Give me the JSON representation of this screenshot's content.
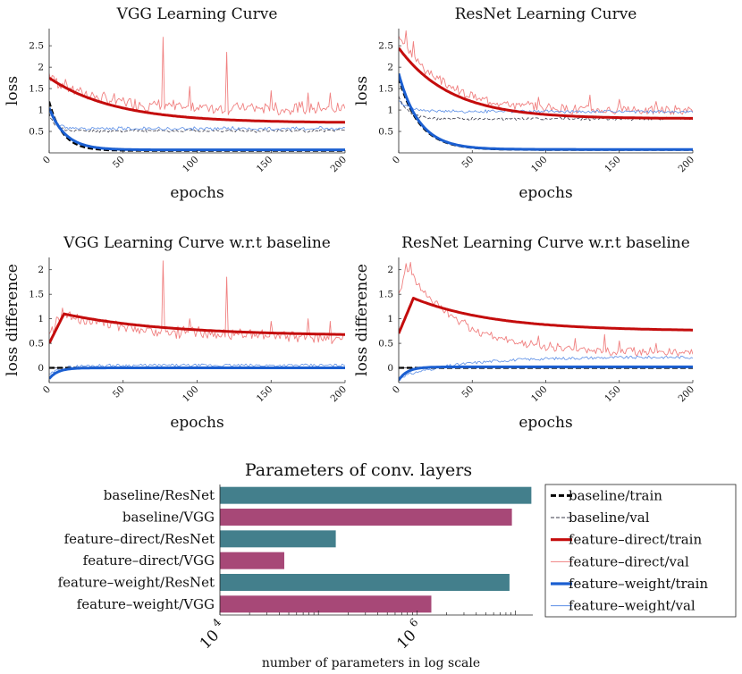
{
  "chart_data": [
    {
      "type": "line",
      "id": "vgg_curve",
      "title": "VGG Learning Curve",
      "xlabel": "epochs",
      "ylabel": "loss",
      "xlim": [
        0,
        200
      ],
      "ylim": [
        0,
        2.9
      ],
      "xticks": [
        0,
        50,
        100,
        150,
        200
      ],
      "yticks": [
        0.5,
        1,
        1.5,
        2,
        2.5
      ],
      "ytick_labels": [
        "0.5",
        "1",
        "1.5",
        "2",
        "2.5"
      ],
      "series": [
        {
          "name": "baseline/train",
          "color": "#000000",
          "width": 2.2,
          "dash": "6,3",
          "kind": "decay",
          "start": 1.2,
          "end": 0.05,
          "tau": 9
        },
        {
          "name": "baseline/val",
          "color": "#3a3a4a",
          "width": 0.8,
          "dash": "4,2",
          "kind": "noisy",
          "start": 0.9,
          "end": 0.5,
          "tau": 4,
          "noise": 0.03,
          "seed": 11
        },
        {
          "name": "feature-direct/train",
          "color": "#c40c0c",
          "width": 3,
          "dash": "",
          "kind": "decay",
          "start": 1.75,
          "end": 0.7,
          "tau": 45
        },
        {
          "name": "feature-direct/val",
          "color": "#f08080",
          "width": 0.9,
          "dash": "",
          "kind": "noisy",
          "start": 1.75,
          "end": 0.98,
          "tau": 30,
          "noise": 0.12,
          "seed": 7,
          "spikes": [
            [
              77,
              2.7
            ],
            [
              120,
              2.35
            ],
            [
              95,
              1.55
            ],
            [
              150,
              1.45
            ],
            [
              175,
              1.4
            ],
            [
              30,
              1.35
            ],
            [
              190,
              1.4
            ]
          ]
        },
        {
          "name": "feature-weight/train",
          "color": "#1b5fd1",
          "width": 3,
          "dash": "",
          "kind": "decay",
          "start": 1.05,
          "end": 0.07,
          "tau": 11
        },
        {
          "name": "feature-weight/val",
          "color": "#5b8ee6",
          "width": 0.8,
          "dash": "",
          "kind": "noisy",
          "start": 1.0,
          "end": 0.55,
          "tau": 4,
          "noise": 0.035,
          "seed": 23
        }
      ]
    },
    {
      "type": "line",
      "id": "resnet_curve",
      "title": "ResNet Learning Curve",
      "xlabel": "epochs",
      "ylabel": "loss",
      "xlim": [
        0,
        200
      ],
      "ylim": [
        0,
        2.9
      ],
      "xticks": [
        0,
        50,
        100,
        150,
        200
      ],
      "yticks": [
        0.5,
        1,
        1.5,
        2,
        2.5
      ],
      "ytick_labels": [
        "0.5",
        "1",
        "1.5",
        "2",
        "2.5"
      ],
      "series": [
        {
          "name": "baseline/train",
          "color": "#000000",
          "width": 2.2,
          "dash": "6,3",
          "kind": "decay",
          "start": 1.75,
          "end": 0.07,
          "tau": 14
        },
        {
          "name": "baseline/val",
          "color": "#3a3a4a",
          "width": 0.8,
          "dash": "4,2",
          "kind": "noisy",
          "start": 1.3,
          "end": 0.78,
          "tau": 6,
          "noise": 0.03,
          "seed": 5
        },
        {
          "name": "feature-direct/train",
          "color": "#c40c0c",
          "width": 3,
          "dash": "",
          "kind": "decay",
          "start": 2.45,
          "end": 0.8,
          "tau": 35
        },
        {
          "name": "feature-direct/val",
          "color": "#f08080",
          "width": 0.9,
          "dash": "",
          "kind": "noisy",
          "start": 2.7,
          "end": 0.95,
          "tau": 30,
          "noise": 0.09,
          "seed": 3,
          "spikes": [
            [
              5,
              2.85
            ],
            [
              10,
              2.6
            ],
            [
              95,
              1.3
            ],
            [
              130,
              1.35
            ],
            [
              150,
              1.25
            ],
            [
              175,
              1.2
            ]
          ]
        },
        {
          "name": "feature-weight/train",
          "color": "#1b5fd1",
          "width": 3,
          "dash": "",
          "kind": "decay",
          "start": 1.85,
          "end": 0.08,
          "tau": 14
        },
        {
          "name": "feature-weight/val",
          "color": "#5b8ee6",
          "width": 0.8,
          "dash": "",
          "kind": "noisy",
          "start": 1.2,
          "end": 0.95,
          "tau": 8,
          "noise": 0.03,
          "seed": 19
        }
      ]
    },
    {
      "type": "line",
      "id": "vgg_diff",
      "title": "VGG Learning Curve w.r.t baseline",
      "xlabel": "epochs",
      "ylabel": "loss difference",
      "xlim": [
        0,
        200
      ],
      "ylim": [
        -0.3,
        2.25
      ],
      "xticks": [
        0,
        50,
        100,
        150,
        200
      ],
      "yticks": [
        0,
        0.5,
        1,
        1.5,
        2
      ],
      "ytick_labels": [
        "0",
        "0.5",
        "1",
        "1.5",
        "2"
      ],
      "series": [
        {
          "name": "baseline/train",
          "color": "#000000",
          "width": 2.2,
          "dash": "6,3",
          "kind": "const",
          "value": 0
        },
        {
          "name": "baseline/val",
          "color": "#3a3a4a",
          "width": 0.8,
          "dash": "4,2",
          "kind": "const",
          "value": 0
        },
        {
          "name": "feature-direct/train",
          "color": "#c40c0c",
          "width": 3,
          "dash": "",
          "kind": "rise",
          "start": 0.5,
          "peak": 1.1,
          "peakx": 10,
          "end": 0.65,
          "tau": 70
        },
        {
          "name": "feature-direct/val",
          "color": "#f08080",
          "width": 0.9,
          "dash": "",
          "kind": "noisyrise",
          "start": 0.6,
          "peak": 1.05,
          "peakx": 8,
          "end": 0.55,
          "tau": 60,
          "noise": 0.1,
          "seed": 13,
          "spikes": [
            [
              77,
              2.18
            ],
            [
              120,
              1.85
            ],
            [
              95,
              1.0
            ],
            [
              150,
              0.95
            ],
            [
              175,
              1.0
            ],
            [
              190,
              0.95
            ]
          ]
        },
        {
          "name": "feature-weight/train",
          "color": "#1b5fd1",
          "width": 3,
          "dash": "",
          "kind": "recover",
          "start": -0.22,
          "end": 0.0,
          "tau": 6
        },
        {
          "name": "feature-weight/val",
          "color": "#5b8ee6",
          "width": 0.8,
          "dash": "",
          "kind": "noisyrecover",
          "start": -0.15,
          "end": 0.05,
          "tau": 8,
          "noise": 0.03,
          "seed": 29
        }
      ]
    },
    {
      "type": "line",
      "id": "resnet_diff",
      "title": "ResNet Learning Curve w.r.t baseline",
      "xlabel": "epochs",
      "ylabel": "loss difference",
      "xlim": [
        0,
        200
      ],
      "ylim": [
        -0.3,
        2.25
      ],
      "xticks": [
        0,
        50,
        100,
        150,
        200
      ],
      "yticks": [
        0,
        0.5,
        1,
        1.5,
        2
      ],
      "ytick_labels": [
        "0",
        "0.5",
        "1",
        "1.5",
        "2"
      ],
      "series": [
        {
          "name": "baseline/train",
          "color": "#000000",
          "width": 2.2,
          "dash": "6,3",
          "kind": "const",
          "value": 0
        },
        {
          "name": "baseline/val",
          "color": "#3a3a4a",
          "width": 0.8,
          "dash": "4,2",
          "kind": "const",
          "value": 0
        },
        {
          "name": "feature-direct/train",
          "color": "#c40c0c",
          "width": 3,
          "dash": "",
          "kind": "rise",
          "start": 0.7,
          "peak": 1.42,
          "peakx": 10,
          "end": 0.75,
          "tau": 55
        },
        {
          "name": "feature-direct/val",
          "color": "#f08080",
          "width": 0.9,
          "dash": "",
          "kind": "noisyrise",
          "start": 1.4,
          "peak": 2.05,
          "peakx": 5,
          "end": 0.28,
          "tau": 35,
          "noise": 0.07,
          "seed": 17,
          "spikes": [
            [
              8,
              2.15
            ],
            [
              95,
              0.65
            ],
            [
              120,
              0.6
            ],
            [
              140,
              0.68
            ],
            [
              150,
              0.55
            ],
            [
              175,
              0.5
            ]
          ]
        },
        {
          "name": "feature-weight/train",
          "color": "#1b5fd1",
          "width": 3,
          "dash": "",
          "kind": "recover",
          "start": -0.25,
          "end": 0.02,
          "tau": 6
        },
        {
          "name": "feature-weight/val",
          "color": "#5b8ee6",
          "width": 0.8,
          "dash": "",
          "kind": "noisyrecover",
          "start": -0.2,
          "end": 0.22,
          "tau": 40,
          "noise": 0.03,
          "seed": 31
        }
      ]
    },
    {
      "type": "bar",
      "id": "params",
      "orientation": "horizontal",
      "title": "Parameters of conv. layers",
      "xlabel": "number of parameters in log scale",
      "xscale": "log",
      "xlim": [
        10000,
        15000000
      ],
      "xtick_majors": [
        10000,
        1000000
      ],
      "xtick_labels": [
        {
          "base": "10",
          "exp": "4"
        },
        {
          "base": "10",
          "exp": "6"
        }
      ],
      "categories": [
        "baseline/ResNet",
        "baseline/VGG",
        "feature–direct/ResNet",
        "feature–direct/VGG",
        "feature–weight/ResNet",
        "feature–weight/VGG"
      ],
      "values": [
        14500000,
        9200000,
        150000,
        45000,
        8700000,
        1400000
      ],
      "colors": [
        "#437f8c",
        "#a74877",
        "#437f8c",
        "#a74877",
        "#437f8c",
        "#a74877"
      ]
    }
  ],
  "legend": {
    "entries": [
      {
        "label": "baseline/train",
        "color": "#000000",
        "width": 3,
        "dash": "6,3"
      },
      {
        "label": "baseline/val",
        "color": "#3a3a4a",
        "width": 1,
        "dash": "4,2"
      },
      {
        "label": "feature–direct/train",
        "color": "#c40c0c",
        "width": 3.2,
        "dash": ""
      },
      {
        "label": "feature–direct/val",
        "color": "#f08080",
        "width": 1,
        "dash": ""
      },
      {
        "label": "feature–weight/train",
        "color": "#1b5fd1",
        "width": 3.2,
        "dash": ""
      },
      {
        "label": "feature–weight/val",
        "color": "#5b8ee6",
        "width": 1,
        "dash": ""
      }
    ]
  }
}
